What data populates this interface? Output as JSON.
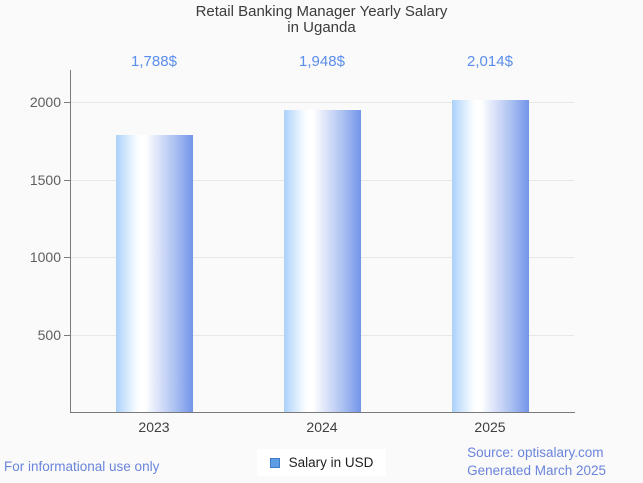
{
  "title": {
    "line1": "Retail Banking Manager Yearly Salary",
    "line2": "in Uganda"
  },
  "chart_data": {
    "type": "bar",
    "title": "Retail Banking Manager Yearly Salary in Uganda",
    "categories": [
      "2023",
      "2024",
      "2025"
    ],
    "values": [
      1788,
      1948,
      2014
    ],
    "value_labels": [
      "1,788$",
      "1,948$",
      "2,014$"
    ],
    "series": [
      {
        "name": "Salary in USD",
        "values": [
          1788,
          1948,
          2014
        ]
      }
    ],
    "xlabel": "",
    "ylabel": "",
    "ylim": [
      0,
      2000
    ],
    "yticks": [
      500,
      1000,
      1500,
      2000
    ],
    "grid": true,
    "legend_position": "bottom",
    "bar_gradient_stops": [
      "#abd1fa 0%",
      "#f2f8ff 24%",
      "#ffffff 31%",
      "#ffffff 38%",
      "#e9eefb 48%",
      "#ccd8f6 62%",
      "#a3bbf0 80%",
      "#7394e9 100%"
    ],
    "value_label_color": "#5a8ded"
  },
  "legend": {
    "label": "Salary in USD",
    "swatch_color": "#5e9ce5",
    "swatch_border_color": "#3e7cc2"
  },
  "footer": {
    "left": "For informational use only",
    "source_line1": "Source: optisalary.com",
    "source_line2": "Generated March 2025",
    "text_color": "#6a84dc"
  }
}
